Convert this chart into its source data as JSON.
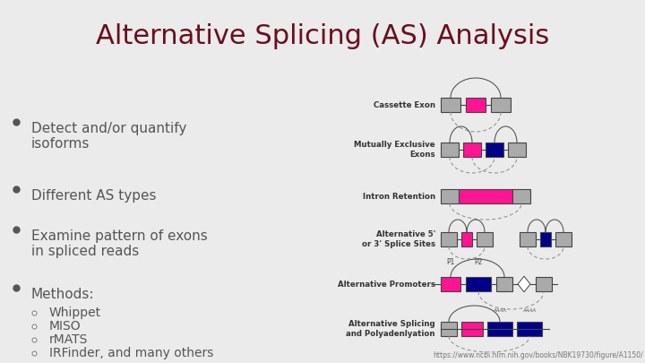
{
  "title": "Alternative Splicing (AS) Analysis",
  "title_color": "#6B0E1E",
  "title_fontsize": 22,
  "bg_color": "#EBEBEB",
  "content_bg": "#F5F5F5",
  "bullet_points": [
    "Detect and/or quantify\nisoforms",
    "Different AS types",
    "Examine pattern of exons\nin spliced reads",
    "Methods:"
  ],
  "sub_bullets": [
    "Whippet",
    "MISO",
    "rMATS",
    "IRFinder, and many others"
  ],
  "url": "https://www.ncbi.nlm.nih.gov/books/NBK19730/figure/A1150/",
  "diagram_labels": [
    "Cassette Exon",
    "Mutually Exclusive\nExons",
    "Intron Retention",
    "Alternative 5'\nor 3' Splice Sites",
    "Alternative Promoters",
    "Alternative Splicing\nand Polyadenlyation"
  ],
  "pink": "#FF1493",
  "blue": "#00008B",
  "gray": "#AAAAAA",
  "gray_dark": "#888888",
  "line_color": "#444444",
  "title_bg": "#DCDCDC",
  "label_fontsize": 6.2,
  "bullet_fontsize": 11,
  "sub_fontsize": 10,
  "text_color": "#555555"
}
